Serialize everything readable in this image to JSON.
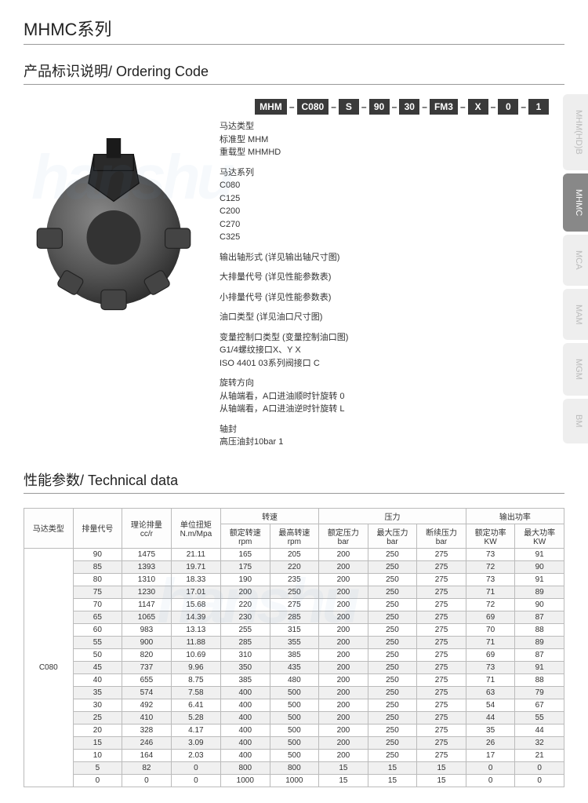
{
  "page_title": "MHMC系列",
  "ordering": {
    "section_title": "产品标识说明/ Ordering Code",
    "codes": [
      "MHM",
      "C080",
      "S",
      "90",
      "30",
      "FM3",
      "X",
      "0",
      "1"
    ],
    "groups": [
      {
        "title": "马达类型",
        "lines": [
          "标准型    MHM",
          "重载型    MHMHD"
        ]
      },
      {
        "title": "马达系列",
        "lines": [
          "C080",
          "C125",
          "C200",
          "C270",
          "C325"
        ]
      },
      {
        "title": "输出轴形式 (详见输出轴尺寸图)",
        "lines": []
      },
      {
        "title": "大排量代号 (详见性能参数表)",
        "lines": []
      },
      {
        "title": "小排量代号 (详见性能参数表)",
        "lines": []
      },
      {
        "title": "油口类型 (详见油口尺寸图)",
        "lines": []
      },
      {
        "title": "变量控制口类型 (变量控制油口图)",
        "lines": [
          "G1/4螺纹接口X、Y             X",
          "ISO 4401 03系列阀接口    C"
        ]
      },
      {
        "title": "旋转方向",
        "lines": [
          "从轴端看，A口进油顺时针旋转    0",
          "从轴端看，A口进油逆时针旋转    L"
        ]
      },
      {
        "title": "轴封",
        "lines": [
          "高压油封10bar    1"
        ]
      }
    ]
  },
  "side_tabs": [
    {
      "label": "MHM(HD)B",
      "active": false
    },
    {
      "label": "MHMC",
      "active": true
    },
    {
      "label": "MCA",
      "active": false
    },
    {
      "label": "MAM",
      "active": false
    },
    {
      "label": "MGM",
      "active": false
    },
    {
      "label": "BM",
      "active": false
    }
  ],
  "tech": {
    "section_title": "性能参数/ Technical data",
    "group_headers": {
      "speed": "转速",
      "pressure": "压力",
      "power": "输出功率"
    },
    "headers": {
      "motor_type": "马达类型",
      "disp_code": "排量代号",
      "disp_val": "理论排量",
      "disp_unit": "cc/r",
      "torque": "单位扭矩",
      "torque_unit": "N.m/Mpa",
      "rated_speed": "额定转速",
      "rated_speed_unit": "rpm",
      "max_speed": "最高转速",
      "max_speed_unit": "rpm",
      "rated_press": "额定压力",
      "rated_press_unit": "bar",
      "max_press": "最大压力",
      "max_press_unit": "bar",
      "cont_press": "断续压力",
      "cont_press_unit": "bar",
      "rated_power": "额定功率",
      "rated_power_unit": "KW",
      "max_power": "最大功率",
      "max_power_unit": "KW"
    },
    "model": "C080",
    "rows": [
      [
        "90",
        "1475",
        "21.11",
        "165",
        "205",
        "200",
        "250",
        "275",
        "73",
        "91"
      ],
      [
        "85",
        "1393",
        "19.71",
        "175",
        "220",
        "200",
        "250",
        "275",
        "72",
        "90"
      ],
      [
        "80",
        "1310",
        "18.33",
        "190",
        "235",
        "200",
        "250",
        "275",
        "73",
        "91"
      ],
      [
        "75",
        "1230",
        "17.01",
        "200",
        "250",
        "200",
        "250",
        "275",
        "71",
        "89"
      ],
      [
        "70",
        "1147",
        "15.68",
        "220",
        "275",
        "200",
        "250",
        "275",
        "72",
        "90"
      ],
      [
        "65",
        "1065",
        "14.39",
        "230",
        "285",
        "200",
        "250",
        "275",
        "69",
        "87"
      ],
      [
        "60",
        "983",
        "13.13",
        "255",
        "315",
        "200",
        "250",
        "275",
        "70",
        "88"
      ],
      [
        "55",
        "900",
        "11.88",
        "285",
        "355",
        "200",
        "250",
        "275",
        "71",
        "89"
      ],
      [
        "50",
        "820",
        "10.69",
        "310",
        "385",
        "200",
        "250",
        "275",
        "69",
        "87"
      ],
      [
        "45",
        "737",
        "9.96",
        "350",
        "435",
        "200",
        "250",
        "275",
        "73",
        "91"
      ],
      [
        "40",
        "655",
        "8.75",
        "385",
        "480",
        "200",
        "250",
        "275",
        "71",
        "88"
      ],
      [
        "35",
        "574",
        "7.58",
        "400",
        "500",
        "200",
        "250",
        "275",
        "63",
        "79"
      ],
      [
        "30",
        "492",
        "6.41",
        "400",
        "500",
        "200",
        "250",
        "275",
        "54",
        "67"
      ],
      [
        "25",
        "410",
        "5.28",
        "400",
        "500",
        "200",
        "250",
        "275",
        "44",
        "55"
      ],
      [
        "20",
        "328",
        "4.17",
        "400",
        "500",
        "200",
        "250",
        "275",
        "35",
        "44"
      ],
      [
        "15",
        "246",
        "3.09",
        "400",
        "500",
        "200",
        "250",
        "275",
        "26",
        "32"
      ],
      [
        "10",
        "164",
        "2.03",
        "400",
        "500",
        "200",
        "250",
        "275",
        "17",
        "21"
      ],
      [
        "5",
        "82",
        "0",
        "800",
        "800",
        "15",
        "15",
        "15",
        "0",
        "0"
      ],
      [
        "0",
        "0",
        "0",
        "1000",
        "1000",
        "15",
        "15",
        "15",
        "0",
        "0"
      ]
    ]
  },
  "style": {
    "code_box_bg": "#3a3a3a",
    "code_box_fg": "#ffffff",
    "border_color": "#bbbbbb",
    "row_even_bg": "#f0f0f0"
  }
}
